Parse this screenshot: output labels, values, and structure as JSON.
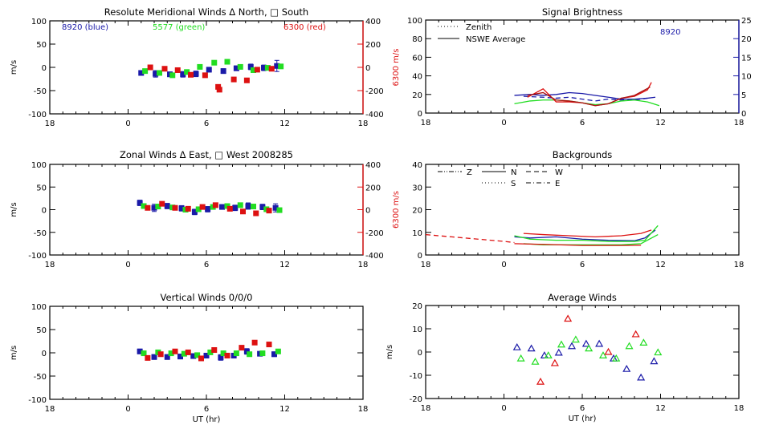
{
  "colors": {
    "blue": "#1a1aa8",
    "green": "#22dd22",
    "red": "#dd1111",
    "darkred": "#aa1111",
    "axis": "#000000"
  },
  "chart_data": [
    {
      "id": "meridional",
      "type": "scatter",
      "title": "Resolute Meridional Winds Δ North, □ South",
      "xlabel": "",
      "ylabel": "m/s",
      "ylim": [
        -100,
        100
      ],
      "yticks": [
        "100",
        "50",
        "0",
        "-50",
        "-100"
      ],
      "xlim": [
        -6,
        18
      ],
      "xticks": [
        "18",
        "0",
        "6",
        "12",
        "18"
      ],
      "right_axis": {
        "label": "6300 m/s",
        "ylim": [
          -400,
          400
        ],
        "ticks": [
          "400",
          "200",
          "0",
          "-200",
          "-400"
        ],
        "color": "red"
      },
      "annotations": [
        {
          "text": "8920 (blue)",
          "color": "blue"
        },
        {
          "text": "5577 (green)",
          "color": "green"
        },
        {
          "text": "6300 (red)",
          "color": "red"
        }
      ],
      "series": [
        {
          "name": "8920",
          "color": "blue",
          "x": [
            1.0,
            2.1,
            3.2,
            4.2,
            5.2,
            6.2,
            7.3,
            8.3,
            9.4,
            10.4,
            11.4
          ],
          "y": [
            -12,
            -14,
            -15,
            -15,
            -14,
            -5,
            -8,
            -2,
            1,
            -1,
            3
          ],
          "err": [
            5,
            7,
            5,
            6,
            6,
            5,
            5,
            5,
            6,
            6,
            12
          ]
        },
        {
          "name": "5577",
          "color": "green",
          "x": [
            1.3,
            2.4,
            3.4,
            4.5,
            5.5,
            6.6,
            7.6,
            8.6,
            9.6,
            10.7,
            11.7
          ],
          "y": [
            -8,
            -12,
            -17,
            -10,
            1,
            10,
            12,
            1,
            -6,
            -1,
            2
          ],
          "err": [
            2,
            2,
            2,
            2,
            2,
            3,
            3,
            2,
            2,
            2,
            2
          ]
        },
        {
          "name": "6300",
          "color": "red",
          "x": [
            1.7,
            2.8,
            3.8,
            4.8,
            5.9,
            6.9,
            7.0,
            8.1,
            9.1,
            9.9,
            11.0
          ],
          "y": [
            0,
            -3,
            -6,
            -16,
            -17,
            -42,
            -48,
            -26,
            -28,
            -5,
            -3
          ],
          "err": [
            2,
            2,
            2,
            2,
            2,
            3,
            2,
            2,
            3,
            3,
            2
          ]
        }
      ]
    },
    {
      "id": "brightness",
      "type": "line",
      "title": "Signal Brightness",
      "xlabel": "",
      "ylabel": "",
      "ylim": [
        0,
        100
      ],
      "yticks": [
        "100",
        "80",
        "60",
        "40",
        "20",
        "0"
      ],
      "xlim": [
        -6,
        18
      ],
      "xticks": [
        "18",
        "0",
        "6",
        "12",
        "18"
      ],
      "right_axis": {
        "label": "",
        "ylim": [
          0,
          25
        ],
        "ticks": [
          "25",
          "20",
          "15",
          "10",
          "5",
          "0"
        ],
        "color": "blue"
      },
      "legend": [
        {
          "label": "Zenith",
          "style": "dotted"
        },
        {
          "label": "NSWE Average",
          "style": "solid"
        }
      ],
      "legend_position": "top-left",
      "annotation": {
        "text": "8920",
        "color": "blue"
      },
      "series": [
        {
          "name": "8920 NSWE Average",
          "color": "blue",
          "style": "solid",
          "x": [
            0.8,
            2,
            3,
            4,
            5,
            6,
            7,
            8,
            9,
            10,
            11,
            11.6
          ],
          "y": [
            19,
            20,
            19,
            20,
            22,
            21,
            19,
            17,
            15,
            15,
            16,
            17
          ]
        },
        {
          "name": "8920 Zenith",
          "color": "blue",
          "style": "dashed",
          "x": [
            1.5,
            3,
            4,
            5,
            6,
            7,
            8,
            9,
            10,
            11
          ],
          "y": [
            18,
            17,
            16,
            17,
            15,
            13,
            15,
            14,
            14,
            16
          ]
        },
        {
          "name": "5577 NSWE Average",
          "color": "green",
          "style": "solid",
          "x": [
            0.8,
            2,
            3,
            4,
            5,
            6,
            7,
            8,
            9,
            10,
            11,
            11.9
          ],
          "y": [
            10,
            13,
            14,
            14,
            13,
            11,
            9,
            10,
            13,
            14,
            12,
            8
          ]
        },
        {
          "name": "6300 NSWE Average",
          "color": "red",
          "style": "solid",
          "x": [
            1.8,
            3,
            4,
            5,
            6,
            7,
            8,
            9,
            10,
            11,
            11.3
          ],
          "y": [
            17,
            26,
            12,
            12,
            11,
            8,
            10,
            16,
            18,
            25,
            33
          ]
        },
        {
          "name": "6300 Zenith",
          "color": "darkred",
          "style": "solid",
          "x": [
            1.8,
            3,
            4,
            5,
            6,
            7,
            8,
            9,
            10,
            11.2
          ],
          "y": [
            19,
            22,
            14,
            13,
            11,
            8,
            10,
            16,
            19,
            28
          ]
        }
      ]
    },
    {
      "id": "zonal",
      "type": "scatter",
      "title": "Zonal Winds Δ East, □ West 2008285",
      "xlabel": "",
      "ylabel": "m/s",
      "ylim": [
        -100,
        100
      ],
      "yticks": [
        "100",
        "50",
        "0",
        "-50",
        "-100"
      ],
      "xlim": [
        -6,
        18
      ],
      "xticks": [
        "18",
        "0",
        "6",
        "12",
        "18"
      ],
      "right_axis": {
        "label": "6300 m/s",
        "ylim": [
          -400,
          400
        ],
        "ticks": [
          "400",
          "200",
          "0",
          "-200",
          "-400"
        ],
        "color": "red"
      },
      "series": [
        {
          "name": "8920",
          "color": "blue",
          "x": [
            0.9,
            2.0,
            3.0,
            4.1,
            5.1,
            6.1,
            7.2,
            8.2,
            9.2,
            10.3,
            11.3
          ],
          "y": [
            15,
            4,
            8,
            3,
            -5,
            1,
            6,
            4,
            8,
            6,
            4
          ],
          "err": [
            6,
            8,
            6,
            6,
            6,
            6,
            5,
            6,
            7,
            6,
            9
          ]
        },
        {
          "name": "5577",
          "color": "green",
          "x": [
            1.2,
            2.3,
            3.4,
            4.4,
            5.4,
            6.5,
            7.6,
            8.6,
            9.6,
            10.6,
            11.6
          ],
          "y": [
            8,
            7,
            5,
            0,
            1,
            6,
            8,
            10,
            7,
            1,
            -1
          ],
          "err": [
            2,
            2,
            2,
            2,
            2,
            2,
            2,
            2,
            2,
            2,
            2
          ]
        },
        {
          "name": "6300",
          "color": "red",
          "x": [
            1.5,
            2.6,
            3.6,
            4.6,
            5.7,
            6.7,
            7.8,
            8.8,
            9.8,
            10.8
          ],
          "y": [
            4,
            13,
            4,
            2,
            6,
            10,
            2,
            -4,
            -8,
            -2
          ],
          "err": [
            2,
            3,
            2,
            2,
            2,
            4,
            2,
            3,
            4,
            2
          ]
        }
      ]
    },
    {
      "id": "backgrounds",
      "type": "line",
      "title": "Backgrounds",
      "xlabel": "",
      "ylabel": "",
      "ylim": [
        0,
        40
      ],
      "yticks": [
        "40",
        "30",
        "20",
        "10",
        "0"
      ],
      "xlim": [
        -6,
        18
      ],
      "xticks": [
        "18",
        "0",
        "6",
        "12",
        "18"
      ],
      "legend": [
        {
          "label": "Z",
          "style": "dash-dot-dot"
        },
        {
          "label": "N",
          "style": "solid"
        },
        {
          "label": "W",
          "style": "dashed"
        },
        {
          "label": "S",
          "style": "dotted"
        },
        {
          "label": "E",
          "style": "dash-dot"
        }
      ],
      "legend_position": "top-left",
      "series": [
        {
          "name": "6300 W",
          "color": "red",
          "style": "dashed",
          "x": [
            -6,
            -4,
            -2,
            0,
            0.8
          ],
          "y": [
            9,
            8,
            7,
            6,
            5.5
          ]
        },
        {
          "name": "6300 N",
          "color": "red",
          "style": "solid",
          "x": [
            1.5,
            3,
            5,
            7,
            9,
            10.5,
            11.3
          ],
          "y": [
            9.5,
            9,
            8.5,
            8,
            8.5,
            9.5,
            11
          ]
        },
        {
          "name": "8920 N",
          "color": "blue",
          "style": "solid",
          "x": [
            0.8,
            2,
            4,
            6,
            8,
            10,
            10.8,
            11.6
          ],
          "y": [
            8,
            7.5,
            8,
            7,
            6.5,
            6.3,
            7.5,
            11
          ]
        },
        {
          "name": "5577 N",
          "color": "green",
          "style": "solid",
          "x": [
            0.8,
            2,
            4,
            6,
            8,
            10,
            10.8,
            11.8
          ],
          "y": [
            8.5,
            7,
            6.5,
            6.5,
            6,
            6,
            6.5,
            13
          ]
        },
        {
          "name": "5577 W",
          "color": "green",
          "style": "solid",
          "x": [
            1.5,
            3,
            5,
            7,
            9,
            10.5,
            11.8
          ],
          "y": [
            5,
            4.5,
            4.5,
            4.5,
            4.5,
            5,
            9
          ]
        },
        {
          "name": "6300 S",
          "color": "red",
          "style": "solid",
          "x": [
            0.8,
            3,
            6,
            9,
            10.5
          ],
          "y": [
            5,
            4.7,
            4.2,
            4.2,
            4.3
          ]
        }
      ]
    },
    {
      "id": "vertical",
      "type": "scatter",
      "title": "Vertical Winds 0/0/0",
      "xlabel": "UT (hr)",
      "ylabel": "m/s",
      "ylim": [
        -100,
        100
      ],
      "yticks": [
        "100",
        "50",
        "0",
        "-50",
        "-100"
      ],
      "xlim": [
        -6,
        18
      ],
      "xticks": [
        "18",
        "0",
        "6",
        "12",
        "18"
      ],
      "series": [
        {
          "name": "8920",
          "color": "blue",
          "x": [
            0.9,
            2.0,
            3.0,
            4.0,
            5.0,
            6.0,
            7.1,
            8.1,
            9.1,
            10.1,
            11.2
          ],
          "y": [
            3,
            -9,
            -9,
            -8,
            -7,
            -6,
            -10,
            -6,
            3,
            -2,
            -3
          ],
          "err": [
            5,
            5,
            5,
            5,
            5,
            5,
            6,
            5,
            6,
            4,
            5
          ]
        },
        {
          "name": "5577",
          "color": "green",
          "x": [
            1.2,
            2.3,
            3.3,
            4.3,
            5.3,
            6.3,
            7.3,
            8.3,
            9.3,
            10.3,
            11.5
          ],
          "y": [
            -1,
            1,
            -1,
            -2,
            -5,
            1,
            -1,
            -1,
            -3,
            -1,
            3
          ],
          "err": [
            2,
            2,
            2,
            2,
            2,
            2,
            3,
            2,
            2,
            2,
            2
          ]
        },
        {
          "name": "6300",
          "color": "red",
          "x": [
            1.5,
            2.5,
            3.6,
            4.6,
            5.6,
            6.6,
            7.6,
            8.7,
            9.7,
            10.8
          ],
          "y": [
            -11,
            -3,
            3,
            1,
            -12,
            6,
            -6,
            11,
            22,
            18
          ],
          "err": [
            2,
            2,
            2,
            2,
            3,
            5,
            5,
            3,
            2,
            2
          ]
        }
      ]
    },
    {
      "id": "average",
      "type": "scatter",
      "title": "Average Winds",
      "xlabel": "UT (hr)",
      "ylabel": "m/s",
      "ylim": [
        -20,
        20
      ],
      "yticks": [
        "20",
        "10",
        "0",
        "-10",
        "-20"
      ],
      "xlim": [
        -6,
        18
      ],
      "xticks": [
        "18",
        "0",
        "6",
        "12",
        "18"
      ],
      "series": [
        {
          "name": "8920",
          "color": "blue",
          "x": [
            1.0,
            2.1,
            3.1,
            4.2,
            5.2,
            6.3,
            7.3,
            8.4,
            9.4,
            10.5,
            11.5
          ],
          "y": [
            2,
            1.5,
            -1.5,
            -0.3,
            2.5,
            3.5,
            3.5,
            -2.8,
            -7.3,
            -11,
            -4
          ]
        },
        {
          "name": "5577",
          "color": "green",
          "x": [
            1.3,
            2.4,
            3.4,
            4.4,
            5.5,
            6.5,
            7.6,
            8.6,
            9.6,
            10.7,
            11.8
          ],
          "y": [
            -2.8,
            -4.2,
            -1.5,
            3.2,
            5.3,
            1.5,
            -1.5,
            -2.8,
            2.5,
            4,
            -0.2
          ]
        },
        {
          "name": "6300",
          "color": "red",
          "x": [
            2.8,
            3.9,
            4.9,
            8.0,
            10.1
          ],
          "y": [
            -12.8,
            -4.8,
            14.3,
            0,
            7.6
          ]
        }
      ]
    }
  ]
}
